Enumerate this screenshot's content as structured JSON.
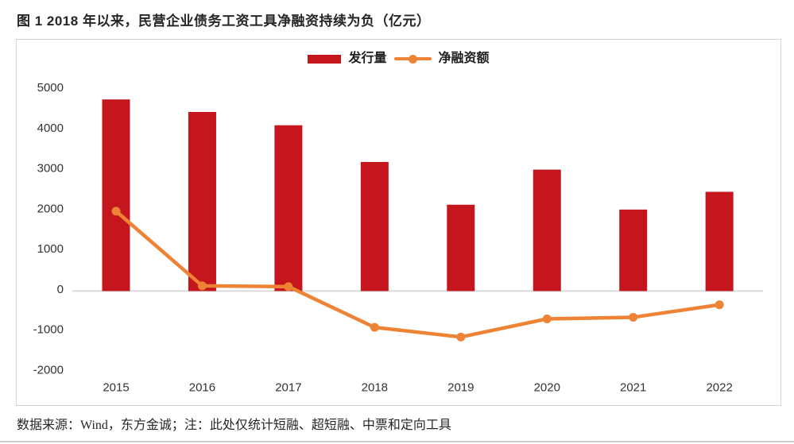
{
  "page": {
    "title": "图 1  2018 年以来，民营企业债务工资工具净融资持续为负（亿元）",
    "source_note": "数据来源：Wind，东方金诚；注：此处仅统计短融、超短融、中票和定向工具"
  },
  "chart_data": {
    "type": "combo",
    "title": "图 1  2018 年以来，民营企业债务工资工具净融资持续为负（亿元）",
    "unit": "亿元",
    "categories": [
      "2015",
      "2016",
      "2017",
      "2018",
      "2019",
      "2020",
      "2021",
      "2022"
    ],
    "series": [
      {
        "name": "发行量",
        "type": "bar",
        "color": "#c5161d",
        "values": [
          4750,
          4440,
          4110,
          3200,
          2140,
          3010,
          2020,
          2460
        ]
      },
      {
        "name": "净融资额",
        "type": "line",
        "color": "#ee8336",
        "values": [
          1980,
          130,
          110,
          -900,
          -1140,
          -690,
          -650,
          -340
        ]
      }
    ],
    "ylim": [
      -2000,
      5000
    ],
    "yticks": [
      5000,
      4000,
      3000,
      2000,
      1000,
      0,
      -1000,
      -2000
    ],
    "grid": false,
    "legend_position": "top-center",
    "xlabel": "",
    "ylabel": ""
  }
}
